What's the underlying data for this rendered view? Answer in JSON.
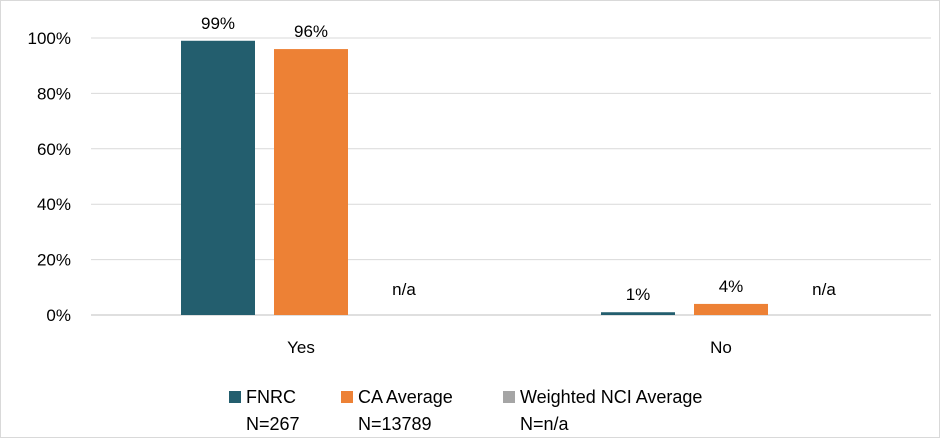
{
  "chart_data": {
    "type": "bar",
    "categories": [
      "Yes",
      "No"
    ],
    "ylim": [
      0,
      100
    ],
    "yticks": [
      "0%",
      "20%",
      "40%",
      "60%",
      "80%",
      "100%"
    ],
    "tick_values": [
      0,
      20,
      40,
      60,
      80,
      100
    ],
    "series": [
      {
        "name": "FNRC",
        "n_label": "N=267",
        "color": "#235e6e",
        "values": [
          99,
          1
        ],
        "labels": [
          "99%",
          "1%"
        ]
      },
      {
        "name": "CA Average",
        "n_label": "N=13789",
        "color": "#ed8135",
        "values": [
          96,
          4
        ],
        "labels": [
          "96%",
          "4%"
        ]
      },
      {
        "name": "Weighted NCI Average",
        "n_label": "N=n/a",
        "color": "#a5a5a5",
        "values": [
          null,
          null
        ],
        "labels": [
          "n/a",
          "n/a"
        ]
      }
    ],
    "legend_position": "bottom",
    "grid": true
  }
}
